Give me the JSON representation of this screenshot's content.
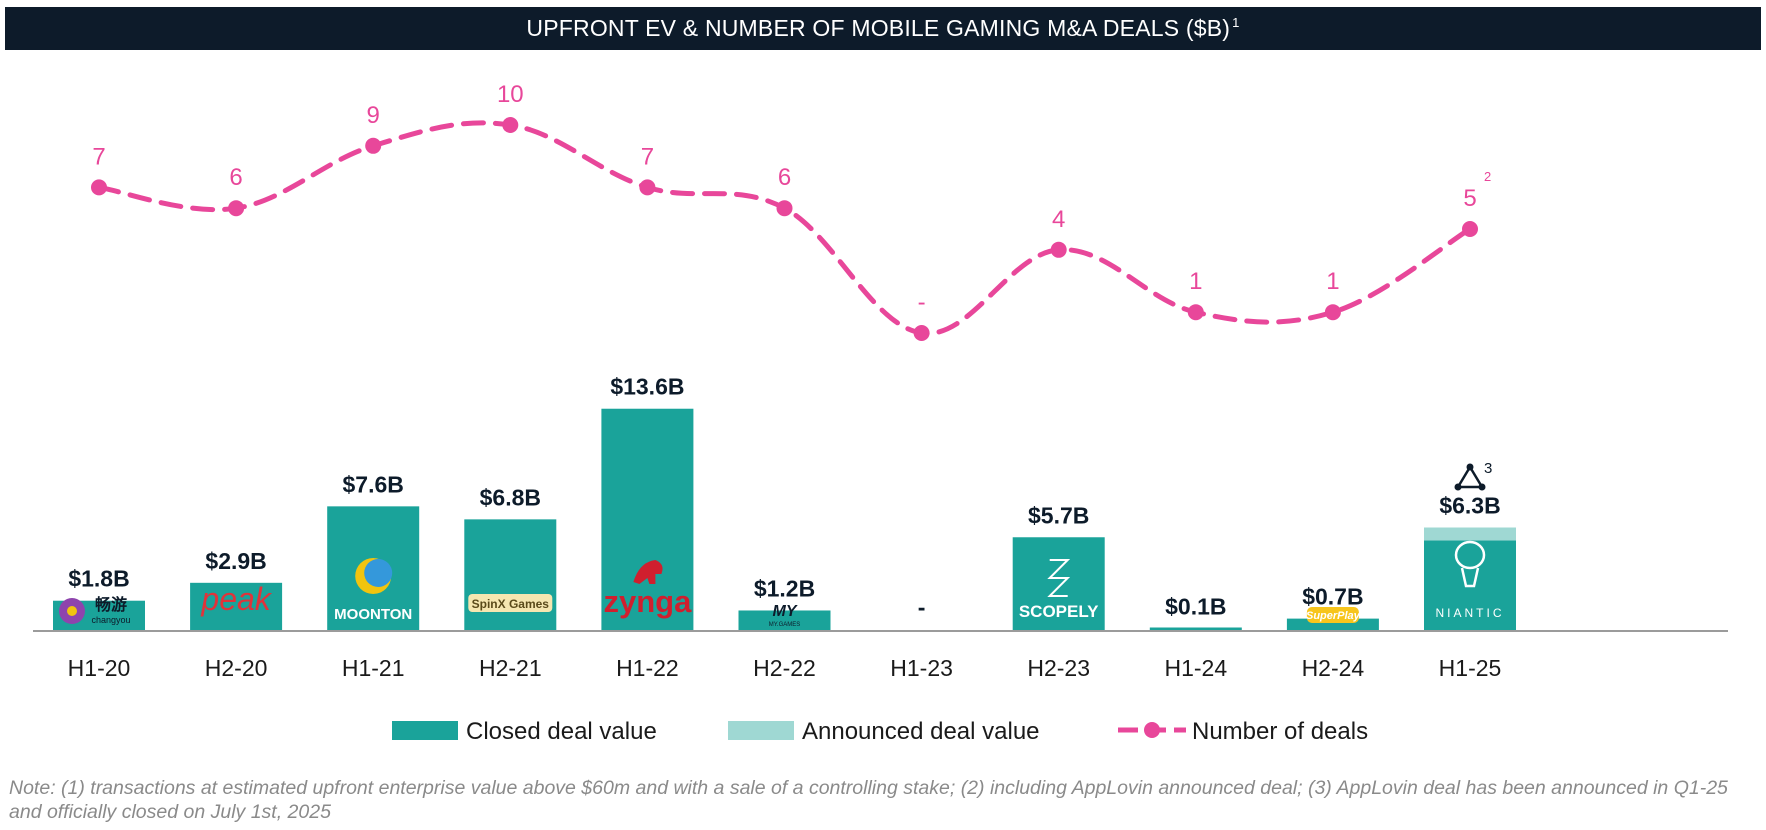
{
  "chart_data": {
    "type": "bar",
    "title": "UPFRONT EV & NUMBER OF MOBILE GAMING M&A DEALS ($B)",
    "title_footnote": "1",
    "categories": [
      "H1-20",
      "H2-20",
      "H1-21",
      "H2-21",
      "H1-22",
      "H2-22",
      "H1-23",
      "H2-23",
      "H1-24",
      "H2-24",
      "H1-25"
    ],
    "series": [
      {
        "name": "Closed deal value",
        "kind": "bar",
        "color": "#1aa39a",
        "values": [
          1.8,
          2.9,
          7.6,
          6.8,
          13.6,
          1.2,
          0,
          5.7,
          0.1,
          0.7,
          5.5
        ]
      },
      {
        "name": "Announced deal value",
        "kind": "bar-stacked",
        "color": "#9fd8d3",
        "values": [
          0,
          0,
          0,
          0,
          0,
          0,
          0,
          0,
          0,
          0,
          0.8
        ]
      },
      {
        "name": "Number of deals",
        "kind": "line",
        "color": "#e8479a",
        "values": [
          7,
          6,
          9,
          10,
          7,
          6,
          0,
          4,
          1,
          1,
          5
        ]
      }
    ],
    "bar_labels": [
      "$1.8B",
      "$2.9B",
      "$7.6B",
      "$6.8B",
      "$13.6B",
      "$1.2B",
      "-",
      "$5.7B",
      "$0.1B",
      "$0.7B",
      "$6.3B"
    ],
    "deal_labels": [
      "7",
      "6",
      "9",
      "10",
      "7",
      "6",
      "-",
      "4",
      "1",
      "1",
      "5"
    ],
    "deal_label_footnotes": [
      "",
      "",
      "",
      "",
      "",
      "",
      "",
      "",
      "",
      "",
      "2"
    ],
    "announced_footnote": "3",
    "companies": [
      "畅游 changyou",
      "peak",
      "MOONTON",
      "SpinX Games",
      "zynga",
      "MY.GAMES",
      "",
      "SCOPELY",
      "",
      "SuperPlay",
      "NIANTIC"
    ],
    "legend": [
      "Closed deal value",
      "Announced deal value",
      "Number of deals"
    ],
    "legend_position": "bottom",
    "grid": false
  },
  "note": "Note: (1) transactions at estimated upfront enterprise value above $60m and with a sale of a controlling stake; (2) including AppLovin announced deal; (3) AppLovin deal has been announced in Q1-25 and officially closed on July 1st, 2025"
}
